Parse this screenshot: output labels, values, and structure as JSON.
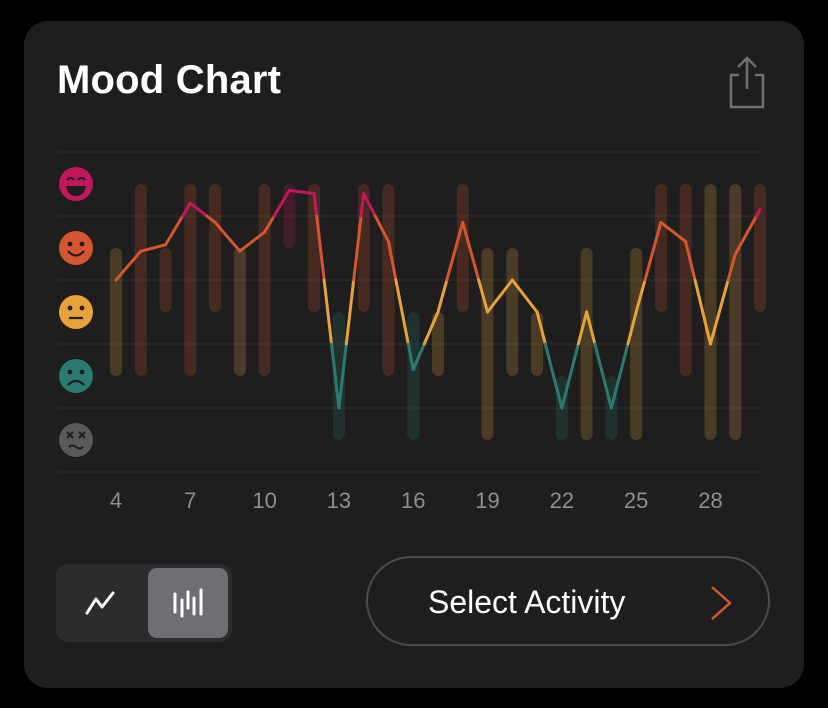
{
  "title": "Mood Chart",
  "select_activity_label": "Select Activity",
  "icons": {
    "share": "share-icon",
    "line_view": "line-chart-icon",
    "bar_view": "bar-chart-icon",
    "chevron": "chevron-right-icon"
  },
  "view_toggle": {
    "selected": "bar"
  },
  "colors": {
    "background": "#000000",
    "card": "#1e1e1e",
    "grid": "#2e2e2e",
    "tick_text": "#8e8e93",
    "mood_rad": "#c2185b",
    "mood_good": "#d4552e",
    "mood_meh": "#e8a23a",
    "mood_bad": "#2a7a72",
    "mood_awful": "#5a5a5a",
    "accent": "#d4552e"
  },
  "chart_data": {
    "type": "line",
    "title": "",
    "xlabel": "",
    "ylabel": "",
    "x_ticks": [
      4,
      7,
      10,
      13,
      16,
      19,
      22,
      25,
      28
    ],
    "xlim": [
      4,
      30
    ],
    "ylim": [
      1,
      5
    ],
    "y_levels": [
      {
        "value": 5,
        "mood": "rad",
        "icon": "grinning-face-icon"
      },
      {
        "value": 4,
        "mood": "good",
        "icon": "smiling-face-icon"
      },
      {
        "value": 3,
        "mood": "meh",
        "icon": "neutral-face-icon"
      },
      {
        "value": 2,
        "mood": "bad",
        "icon": "frowning-face-icon"
      },
      {
        "value": 1,
        "mood": "awful",
        "icon": "dizzy-face-icon"
      }
    ],
    "series": [
      {
        "x": [
          4,
          5,
          6,
          7,
          8,
          9,
          10,
          11,
          12,
          13,
          14,
          15,
          16,
          17,
          18,
          19,
          20,
          21,
          22,
          23,
          24,
          25,
          26,
          27,
          28,
          29,
          30
        ],
        "y": [
          3.5,
          3.95,
          4.05,
          4.7,
          4.4,
          3.95,
          4.25,
          4.9,
          4.85,
          1.5,
          4.85,
          4.1,
          2.1,
          3.0,
          4.4,
          3.0,
          3.5,
          3.0,
          1.5,
          3.0,
          1.5,
          3.0,
          4.4,
          4.1,
          2.5,
          3.9,
          4.6
        ]
      }
    ],
    "ranges": [
      {
        "x": 4,
        "low": 2.0,
        "high": 4.0
      },
      {
        "x": 5,
        "low": 2.0,
        "high": 5.0
      },
      {
        "x": 6,
        "low": 3.0,
        "high": 4.0
      },
      {
        "x": 7,
        "low": 2.0,
        "high": 5.0
      },
      {
        "x": 8,
        "low": 3.0,
        "high": 5.0
      },
      {
        "x": 9,
        "low": 2.0,
        "high": 4.0
      },
      {
        "x": 10,
        "low": 2.0,
        "high": 5.0
      },
      {
        "x": 11,
        "low": 4.0,
        "high": 5.0
      },
      {
        "x": 12,
        "low": 3.0,
        "high": 5.0
      },
      {
        "x": 13,
        "low": 1.0,
        "high": 3.0
      },
      {
        "x": 14,
        "low": 3.0,
        "high": 5.0
      },
      {
        "x": 15,
        "low": 2.0,
        "high": 5.0
      },
      {
        "x": 16,
        "low": 1.0,
        "high": 3.0
      },
      {
        "x": 17,
        "low": 2.0,
        "high": 3.0
      },
      {
        "x": 18,
        "low": 3.0,
        "high": 5.0
      },
      {
        "x": 19,
        "low": 1.0,
        "high": 4.0
      },
      {
        "x": 20,
        "low": 2.0,
        "high": 4.0
      },
      {
        "x": 21,
        "low": 2.0,
        "high": 3.0
      },
      {
        "x": 22,
        "low": 1.0,
        "high": 2.0
      },
      {
        "x": 23,
        "low": 1.0,
        "high": 4.0
      },
      {
        "x": 24,
        "low": 1.0,
        "high": 2.0
      },
      {
        "x": 25,
        "low": 1.0,
        "high": 4.0
      },
      {
        "x": 26,
        "low": 3.0,
        "high": 5.0
      },
      {
        "x": 27,
        "low": 2.0,
        "high": 5.0
      },
      {
        "x": 28,
        "low": 1.0,
        "high": 5.0
      },
      {
        "x": 29,
        "low": 1.0,
        "high": 5.0
      },
      {
        "x": 30,
        "low": 3.0,
        "high": 5.0
      }
    ],
    "grid": true
  }
}
